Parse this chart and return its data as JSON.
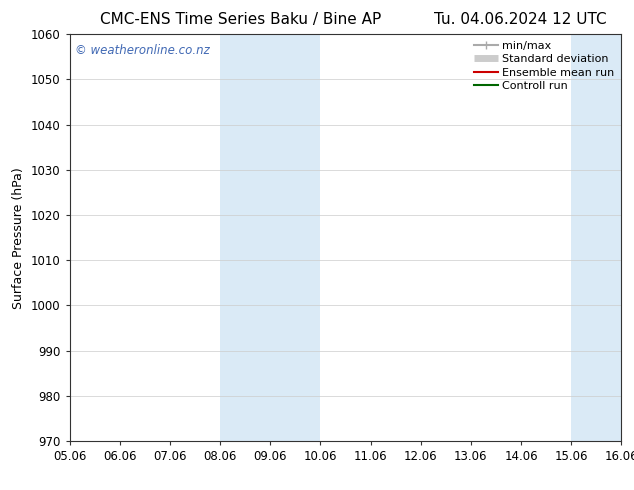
{
  "title_left": "CMC-ENS Time Series Baku / Bine AP",
  "title_right": "Tu. 04.06.2024 12 UTC",
  "ylabel": "Surface Pressure (hPa)",
  "ylim": [
    970,
    1060
  ],
  "yticks": [
    970,
    980,
    990,
    1000,
    1010,
    1020,
    1030,
    1040,
    1050,
    1060
  ],
  "xtick_labels": [
    "05.06",
    "06.06",
    "07.06",
    "08.06",
    "09.06",
    "10.06",
    "11.06",
    "12.06",
    "13.06",
    "14.06",
    "15.06",
    "16.06"
  ],
  "xtick_positions": [
    0,
    1,
    2,
    3,
    4,
    5,
    6,
    7,
    8,
    9,
    10,
    11
  ],
  "xlim": [
    0,
    11
  ],
  "shaded_regions": [
    {
      "xmin": 3,
      "xmax": 5,
      "color": "#daeaf6"
    },
    {
      "xmin": 10,
      "xmax": 12,
      "color": "#daeaf6"
    }
  ],
  "watermark_text": "© weatheronline.co.nz",
  "watermark_color": "#4169b4",
  "legend_items": [
    {
      "label": "min/max",
      "color": "#aaaaaa",
      "lw": 1.5
    },
    {
      "label": "Standard deviation",
      "color": "#cccccc",
      "lw": 5
    },
    {
      "label": "Ensemble mean run",
      "color": "#cc0000",
      "lw": 1.5
    },
    {
      "label": "Controll run",
      "color": "#006600",
      "lw": 1.5
    }
  ],
  "bg_color": "#ffffff",
  "title_fontsize": 11,
  "tick_fontsize": 8.5,
  "ylabel_fontsize": 9,
  "legend_fontsize": 8
}
